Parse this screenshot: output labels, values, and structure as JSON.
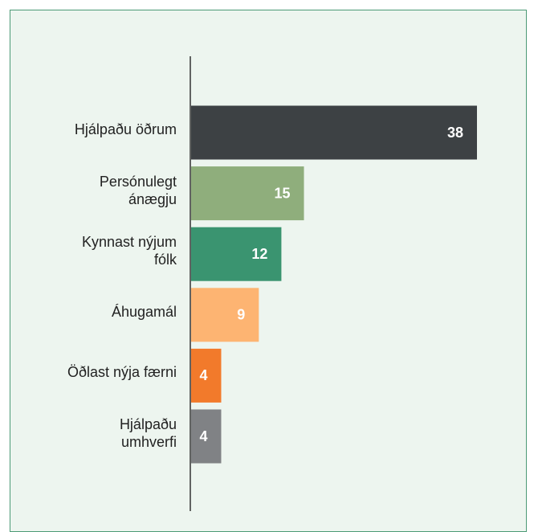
{
  "chart_data": {
    "type": "bar",
    "orientation": "horizontal",
    "categories": [
      "Hjálpaðu öðrum",
      "Persónulegt\nánægju",
      "Kynnast nýjum\nfólk",
      "Áhugamál",
      "Öðlast nýja færni",
      "Hjálpaðu\numhverfi"
    ],
    "values": [
      38,
      15,
      12,
      9,
      4,
      4
    ],
    "colors": [
      "#3d4144",
      "#8fae7c",
      "#3a9470",
      "#fdb472",
      "#f27a2b",
      "#808285"
    ],
    "xlim": [
      0,
      38
    ]
  }
}
